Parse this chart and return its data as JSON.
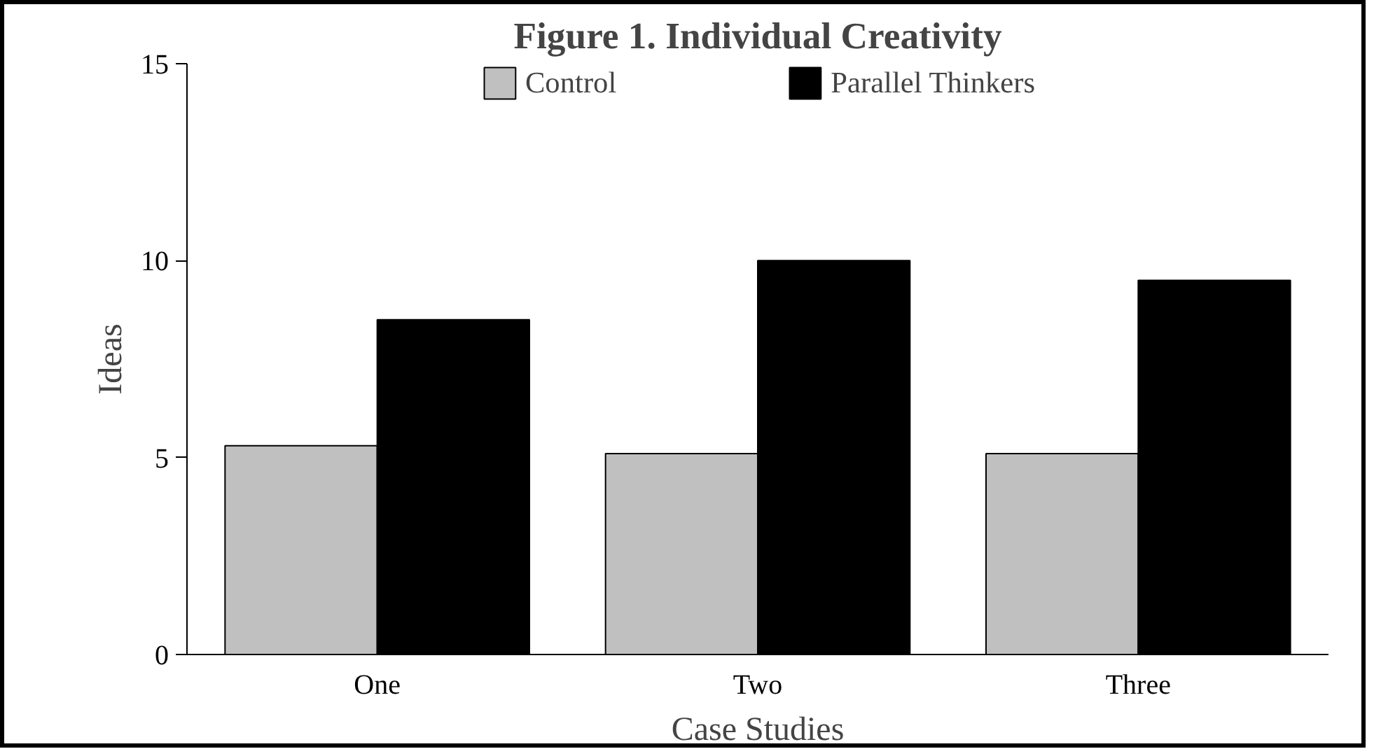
{
  "chart_data": {
    "type": "bar",
    "title": "Figure 1. Individual Creativity",
    "xlabel": "Case Studies",
    "ylabel": "Ideas",
    "categories": [
      "One",
      "Two",
      "Three"
    ],
    "series": [
      {
        "name": "Control",
        "color": "#c0c0c0",
        "values": [
          5.3,
          5.1,
          5.1
        ]
      },
      {
        "name": "Parallel Thinkers",
        "color": "#000000",
        "values": [
          8.5,
          10,
          9.5
        ]
      }
    ],
    "ylim": [
      0,
      15
    ],
    "yticks": [
      0,
      5,
      10,
      15
    ],
    "grid": false,
    "legend": "top"
  }
}
